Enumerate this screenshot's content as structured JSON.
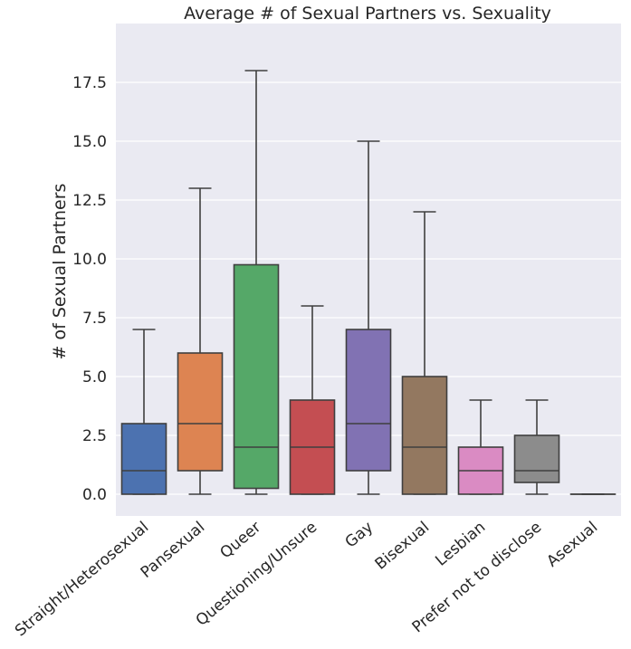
{
  "chart_data": {
    "type": "box",
    "title": "Average # of Sexual Partners vs. Sexuality",
    "xlabel": "",
    "ylabel": "# of Sexual Partners",
    "ylim": [
      -1,
      20
    ],
    "yticks": [
      0.0,
      2.5,
      5.0,
      7.5,
      10.0,
      12.5,
      15.0,
      17.5
    ],
    "ytick_labels": [
      "0.0",
      "2.5",
      "5.0",
      "7.5",
      "10.0",
      "12.5",
      "15.0",
      "17.5"
    ],
    "grid": true,
    "categories": [
      "Straight/Heterosexual",
      "Pansexual",
      "Queer",
      "Questioning/Unsure",
      "Gay",
      "Bisexual",
      "Lesbian",
      "Prefer not to disclose",
      "Asexual"
    ],
    "boxes": [
      {
        "category": "Straight/Heterosexual",
        "whisker_low": 0,
        "q1": 0,
        "median": 1,
        "q3": 3,
        "whisker_high": 7,
        "color": "#4c72b0"
      },
      {
        "category": "Pansexual",
        "whisker_low": 0,
        "q1": 1,
        "median": 3,
        "q3": 6,
        "whisker_high": 13,
        "color": "#dd8452"
      },
      {
        "category": "Queer",
        "whisker_low": 0,
        "q1": 0.25,
        "median": 2,
        "q3": 9.75,
        "whisker_high": 18,
        "color": "#55a868"
      },
      {
        "category": "Questioning/Unsure",
        "whisker_low": 0,
        "q1": 0,
        "median": 2,
        "q3": 4,
        "whisker_high": 8,
        "color": "#c44e52"
      },
      {
        "category": "Gay",
        "whisker_low": 0,
        "q1": 1,
        "median": 3,
        "q3": 7,
        "whisker_high": 15,
        "color": "#8172b3"
      },
      {
        "category": "Bisexual",
        "whisker_low": 0,
        "q1": 0,
        "median": 2,
        "q3": 5,
        "whisker_high": 12,
        "color": "#937860"
      },
      {
        "category": "Lesbian",
        "whisker_low": 0,
        "q1": 0,
        "median": 1,
        "q3": 2,
        "whisker_high": 4,
        "color": "#da8bc3"
      },
      {
        "category": "Prefer not to disclose",
        "whisker_low": 0,
        "q1": 0.5,
        "median": 1,
        "q3": 2.5,
        "whisker_high": 4,
        "color": "#8c8c8c"
      },
      {
        "category": "Asexual",
        "whisker_low": 0,
        "q1": 0,
        "median": 0,
        "q3": 0,
        "whisker_high": 0,
        "color": "#ccb974"
      }
    ],
    "colors": {
      "plot_background": "#eaeaf2",
      "grid": "#ffffff",
      "box_edge": "#3f3f3f"
    }
  }
}
